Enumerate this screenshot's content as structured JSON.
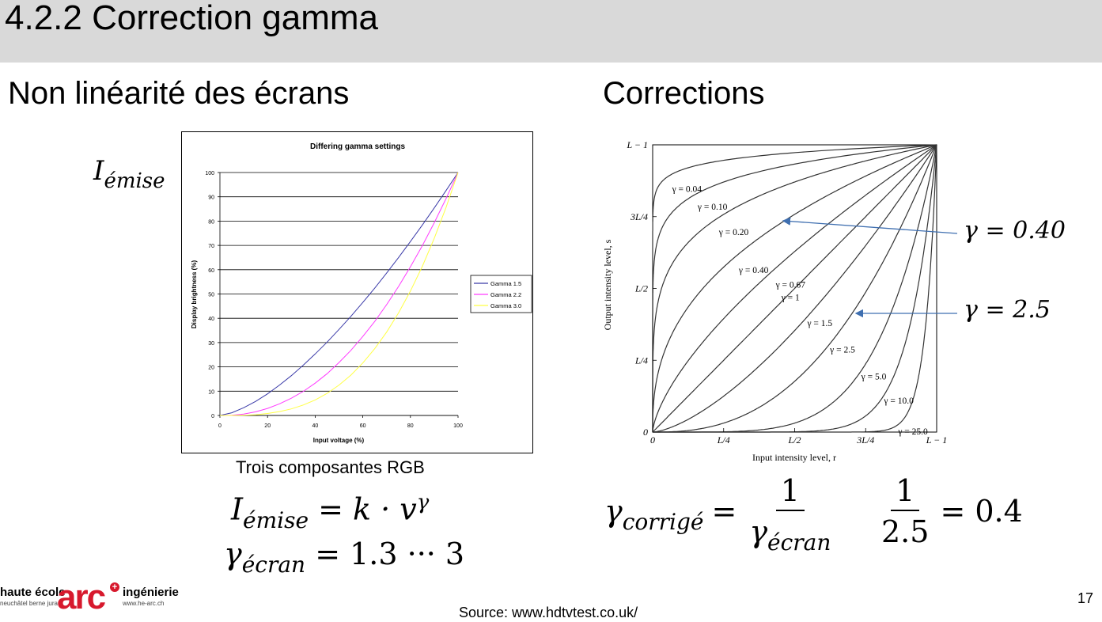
{
  "slide": {
    "title": "4.2.2 Correction gamma",
    "page_number": "17",
    "source": "Source: www.hdtvtest.co.uk/"
  },
  "left": {
    "heading": "Non linéarité des écrans",
    "y_symbol": "I",
    "y_subscript": "émise",
    "x_symbol": "v",
    "caption": "Trois composantes RGB",
    "formula1": {
      "lhs": "I",
      "lhs_sub": "émise",
      "rhs": "= k · v",
      "rhs_sup": "γ"
    },
    "formula2": {
      "lhs": "γ",
      "lhs_sub": "écran",
      "rhs": "= 1.3 ··· 3"
    }
  },
  "right": {
    "heading": "Corrections",
    "callouts": [
      "γ = 0.40",
      "γ = 2.5"
    ],
    "formula": {
      "lhs": "γ",
      "lhs_sub": "corrigé",
      "eq": "=",
      "numerator": "1",
      "denominator": "γ",
      "denominator_sub": "écran",
      "ex_numerator": "1",
      "ex_denominator": "2.5",
      "ex_result": "= 0.4"
    }
  },
  "logo": {
    "line1": "haute école",
    "line2": "neuchâtel berne jura",
    "brand": "arc",
    "line3": "ingénierie",
    "line4": "www.he-arc.ch",
    "brand_color": "#d7192d"
  },
  "chart_data": [
    {
      "type": "line",
      "title": "Differing gamma settings",
      "xlabel": "Input voltage (%)",
      "ylabel": "Display brightness (%)",
      "xlim": [
        0,
        100
      ],
      "ylim": [
        0,
        100
      ],
      "xticks": [
        0,
        20,
        40,
        60,
        80,
        100
      ],
      "yticks": [
        0,
        10,
        20,
        30,
        40,
        50,
        60,
        70,
        80,
        90,
        100
      ],
      "grid": "horizontal",
      "legend_position": "right",
      "x": [
        0,
        5,
        10,
        15,
        20,
        25,
        30,
        35,
        40,
        45,
        50,
        55,
        60,
        65,
        70,
        75,
        80,
        85,
        90,
        95,
        100
      ],
      "series": [
        {
          "name": "Gamma 1.5",
          "color": "#3a3aa8",
          "values": [
            0,
            1.1,
            3.2,
            5.8,
            8.9,
            12.5,
            16.4,
            20.7,
            25.3,
            30.2,
            35.4,
            40.8,
            46.5,
            52.4,
            58.6,
            65,
            71.6,
            78.4,
            85.4,
            92.6,
            100
          ]
        },
        {
          "name": "Gamma 2.2",
          "color": "#ff3cff",
          "values": [
            0,
            0.1,
            0.6,
            1.5,
            2.9,
            4.8,
            7.1,
            9.9,
            13.3,
            17.2,
            21.8,
            26.8,
            32.5,
            38.7,
            45.6,
            53.1,
            61.2,
            69.9,
            79.3,
            89.3,
            100
          ]
        },
        {
          "name": "Gamma 3.0",
          "color": "#ffff44",
          "values": [
            0,
            0,
            0.1,
            0.3,
            0.8,
            1.6,
            2.7,
            4.3,
            6.4,
            9.1,
            12.5,
            16.6,
            21.6,
            27.5,
            34.3,
            42.2,
            51.2,
            61.4,
            72.9,
            85.7,
            100
          ]
        }
      ]
    },
    {
      "type": "line",
      "title": "",
      "xlabel": "Input intensity level, r",
      "ylabel": "Output intensity level, s",
      "xlim": [
        0,
        1
      ],
      "ylim": [
        0,
        1
      ],
      "xtick_labels": [
        "0",
        "L/4",
        "L/2",
        "3L/4",
        "L − 1"
      ],
      "ytick_labels": [
        "0",
        "L/4",
        "L/2",
        "3L/4",
        "L − 1"
      ],
      "function": "s = r^γ",
      "series": [
        {
          "name": "γ = 0.04",
          "gamma": 0.04
        },
        {
          "name": "γ = 0.10",
          "gamma": 0.1
        },
        {
          "name": "γ = 0.20",
          "gamma": 0.2
        },
        {
          "name": "γ = 0.40",
          "gamma": 0.4
        },
        {
          "name": "γ = 0.67",
          "gamma": 0.67
        },
        {
          "name": "γ = 1",
          "gamma": 1
        },
        {
          "name": "γ = 1.5",
          "gamma": 1.5
        },
        {
          "name": "γ = 2.5",
          "gamma": 2.5
        },
        {
          "name": "γ = 5.0",
          "gamma": 5.0
        },
        {
          "name": "γ = 10.0",
          "gamma": 10.0
        },
        {
          "name": "γ = 25.0",
          "gamma": 25.0
        }
      ]
    }
  ]
}
